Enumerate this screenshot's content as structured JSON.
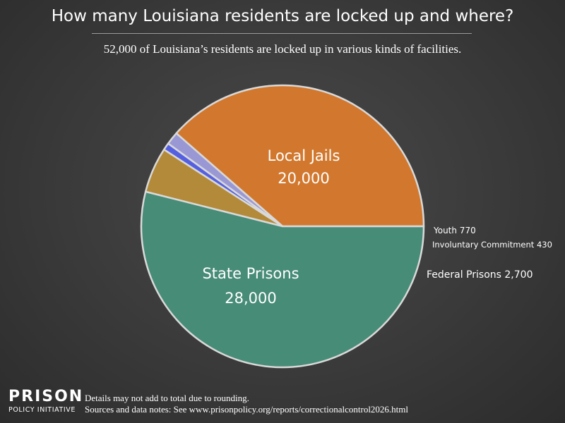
{
  "title": "How many Louisiana residents are locked up and where?",
  "subtitle": "52,000 of Louisiana’s residents are locked up in various kinds of facilities.",
  "logo": {
    "line1": "PRISON",
    "line2": "POLICY INITIATIVE"
  },
  "notes": {
    "line1": "Details may not add to total due to rounding.",
    "line2": "Sources and data notes: See www.prisonpolicy.org/reports/correctionalcontrol2026.html"
  },
  "chart_data": {
    "type": "pie",
    "slices": [
      {
        "name": "Local Jails",
        "value": 20000,
        "value_label": "20,000",
        "color": "#d2782e",
        "label_style": "inside"
      },
      {
        "name": "Youth",
        "value": 770,
        "value_label": "770",
        "color": "#9a98d4",
        "label_style": "outside"
      },
      {
        "name": "Involuntary Commitment",
        "value": 430,
        "value_label": "430",
        "color": "#5560e0",
        "label_style": "outside"
      },
      {
        "name": "Federal Prisons",
        "value": 2700,
        "value_label": "2,700",
        "color": "#b38a3a",
        "label_style": "outside"
      },
      {
        "name": "State Prisons",
        "value": 28000,
        "value_label": "28,000",
        "color": "#478c77",
        "label_style": "inside"
      }
    ],
    "edge_color": "#d9d9d9"
  }
}
